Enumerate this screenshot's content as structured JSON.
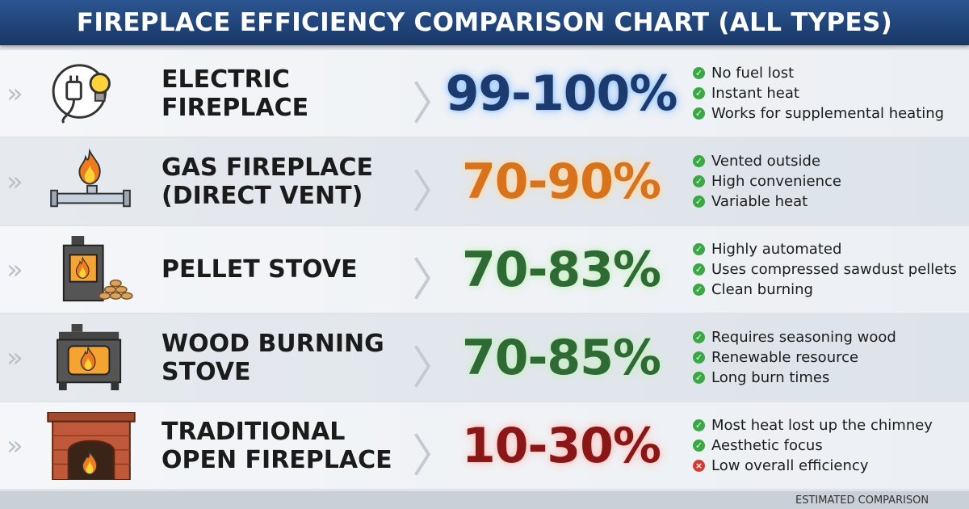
{
  "header": {
    "title": "FIREPLACE EFFICIENCY COMPARISON CHART (ALL TYPES)"
  },
  "rows": [
    {
      "name": [
        "ELECTRIC",
        "FIREPLACE"
      ],
      "efficiency": "99-100%",
      "color": "#1d3a6e",
      "glow": "#8fc3ff",
      "bullets": [
        {
          "text": "No fuel lost",
          "icon": "check"
        },
        {
          "text": "Instant heat",
          "icon": "check"
        },
        {
          "text": "Works for supplemental heating",
          "icon": "check"
        }
      ]
    },
    {
      "name": [
        "GAS FIREPLACE",
        "(DIRECT VENT)"
      ],
      "efficiency": "70-90%",
      "color": "#d8721c",
      "glow": "#ffd9a0",
      "bullets": [
        {
          "text": "Vented outside",
          "icon": "check"
        },
        {
          "text": "High convenience",
          "icon": "check"
        },
        {
          "text": "Variable heat",
          "icon": "check"
        }
      ]
    },
    {
      "name": [
        "PELLET STOVE"
      ],
      "efficiency": "70-83%",
      "color": "#2d6a34",
      "glow": "#c8f0c0",
      "bullets": [
        {
          "text": "Highly automated",
          "icon": "check"
        },
        {
          "text": "Uses compressed sawdust pellets",
          "icon": "check"
        },
        {
          "text": "Clean burning",
          "icon": "check"
        }
      ]
    },
    {
      "name": [
        "WOOD BURNING",
        "STOVE"
      ],
      "efficiency": "70-85%",
      "color": "#2d6a34",
      "glow": "#c8f0c0",
      "bullets": [
        {
          "text": "Requires seasoning wood",
          "icon": "check"
        },
        {
          "text": "Renewable resource",
          "icon": "check"
        },
        {
          "text": "Long burn times",
          "icon": "check"
        }
      ]
    },
    {
      "name": [
        "TRADITIONAL",
        "OPEN FIREPLACE"
      ],
      "efficiency": "10-30%",
      "color": "#8a1717",
      "glow": "#ffc0b8",
      "bullets": [
        {
          "text": "Most heat lost up the chimney",
          "icon": "check"
        },
        {
          "text": "Aesthetic focus",
          "icon": "check"
        },
        {
          "text": "Low overall efficiency",
          "icon": "cross"
        }
      ]
    }
  ],
  "footer": {
    "note": "ESTIMATED COMPARISON"
  }
}
